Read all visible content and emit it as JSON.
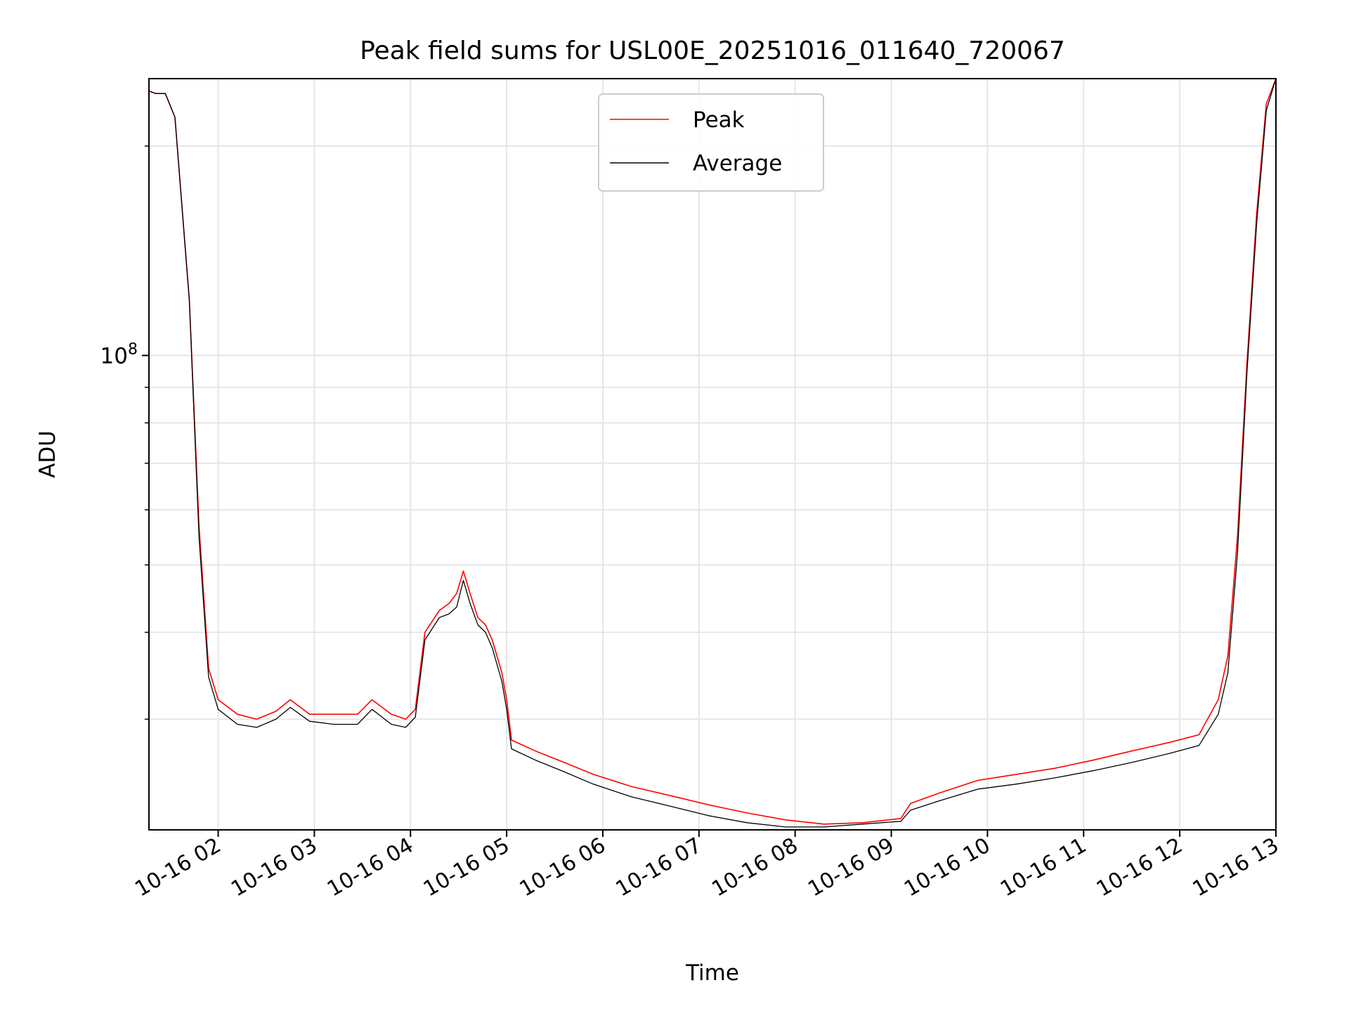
{
  "chart_data": {
    "type": "line",
    "title": "Peak field sums for USL00E_20251016_011640_720067",
    "xlabel": "Time",
    "ylabel": "ADU",
    "yscale": "log",
    "ylim": [
      20800000.0,
      250000000.0
    ],
    "y_major_tick_label": "10",
    "y_major_tick_exp": "8",
    "y_major_tick_value": 100000000.0,
    "y_minor_ticks": [
      30000000.0,
      40000000.0,
      50000000.0,
      60000000.0,
      70000000.0,
      80000000.0,
      90000000.0,
      200000000.0
    ],
    "xlim_hours": [
      1.28,
      13.0
    ],
    "x_ticks": [
      {
        "label": "10-16 02",
        "hour": 2
      },
      {
        "label": "10-16 03",
        "hour": 3
      },
      {
        "label": "10-16 04",
        "hour": 4
      },
      {
        "label": "10-16 05",
        "hour": 5
      },
      {
        "label": "10-16 06",
        "hour": 6
      },
      {
        "label": "10-16 07",
        "hour": 7
      },
      {
        "label": "10-16 08",
        "hour": 8
      },
      {
        "label": "10-16 09",
        "hour": 9
      },
      {
        "label": "10-16 10",
        "hour": 10
      },
      {
        "label": "10-16 11",
        "hour": 11
      },
      {
        "label": "10-16 12",
        "hour": 12
      },
      {
        "label": "10-16 13",
        "hour": 13
      }
    ],
    "grid": true,
    "legend": {
      "location": "top-center",
      "entries": [
        "Peak",
        "Average"
      ]
    },
    "series": [
      {
        "name": "Peak",
        "color": "#ff0000",
        "x_hours": [
          1.28,
          1.35,
          1.45,
          1.55,
          1.7,
          1.8,
          1.9,
          2.0,
          2.2,
          2.4,
          2.6,
          2.75,
          2.95,
          3.2,
          3.45,
          3.6,
          3.8,
          3.95,
          4.05,
          4.15,
          4.3,
          4.4,
          4.48,
          4.55,
          4.62,
          4.7,
          4.78,
          4.85,
          4.95,
          5.0,
          5.05,
          5.3,
          5.6,
          5.9,
          6.3,
          6.7,
          7.1,
          7.5,
          7.9,
          8.3,
          8.7,
          9.1,
          9.2,
          9.5,
          9.9,
          10.3,
          10.7,
          11.1,
          11.5,
          11.9,
          12.2,
          12.4,
          12.5,
          12.6,
          12.7,
          12.8,
          12.9,
          13.0
        ],
        "y_values": [
          240000000.0,
          238000000.0,
          238000000.0,
          220000000.0,
          120000000.0,
          57000000.0,
          35500000.0,
          32000000.0,
          30500000.0,
          30000000.0,
          30800000.0,
          32000000.0,
          30500000.0,
          30500000.0,
          30500000.0,
          32000000.0,
          30500000.0,
          30000000.0,
          31000000.0,
          40000000.0,
          43000000.0,
          44000000.0,
          45500000.0,
          49000000.0,
          45500000.0,
          42000000.0,
          41000000.0,
          39000000.0,
          35000000.0,
          32000000.0,
          28000000.0,
          27000000.0,
          26000000.0,
          25000000.0,
          24000000.0,
          23300000.0,
          22600000.0,
          22000000.0,
          21500000.0,
          21200000.0,
          21300000.0,
          21600000.0,
          22700000.0,
          23500000.0,
          24500000.0,
          25000000.0,
          25500000.0,
          26200000.0,
          27000000.0,
          27800000.0,
          28500000.0,
          32000000.0,
          37000000.0,
          55000000.0,
          98000000.0,
          160000000.0,
          230000000.0,
          250000000.0
        ]
      },
      {
        "name": "Average",
        "color": "#000000",
        "x_hours": [
          1.28,
          1.35,
          1.45,
          1.55,
          1.7,
          1.8,
          1.9,
          2.0,
          2.2,
          2.4,
          2.6,
          2.75,
          2.95,
          3.2,
          3.45,
          3.6,
          3.8,
          3.95,
          4.05,
          4.15,
          4.3,
          4.4,
          4.48,
          4.55,
          4.62,
          4.7,
          4.78,
          4.85,
          4.95,
          5.0,
          5.05,
          5.3,
          5.6,
          5.9,
          6.3,
          6.7,
          7.1,
          7.5,
          7.9,
          8.3,
          8.7,
          9.1,
          9.2,
          9.5,
          9.9,
          10.3,
          10.7,
          11.1,
          11.5,
          11.9,
          12.2,
          12.4,
          12.5,
          12.6,
          12.7,
          12.8,
          12.9,
          13.0
        ],
        "y_values": [
          240000000.0,
          238000000.0,
          238000000.0,
          220000000.0,
          120000000.0,
          55000000.0,
          34500000.0,
          31000000.0,
          29500000.0,
          29200000.0,
          30000000.0,
          31200000.0,
          29800000.0,
          29500000.0,
          29500000.0,
          31000000.0,
          29500000.0,
          29200000.0,
          30200000.0,
          39000000.0,
          42000000.0,
          42500000.0,
          43500000.0,
          47500000.0,
          44000000.0,
          41000000.0,
          40000000.0,
          38000000.0,
          34000000.0,
          31000000.0,
          27200000.0,
          26200000.0,
          25200000.0,
          24200000.0,
          23200000.0,
          22500000.0,
          21800000.0,
          21300000.0,
          21000000.0,
          21000000.0,
          21200000.0,
          21400000.0,
          22200000.0,
          22900000.0,
          23800000.0,
          24200000.0,
          24700000.0,
          25300000.0,
          26000000.0,
          26800000.0,
          27500000.0,
          30500000.0,
          35000000.0,
          52000000.0,
          95000000.0,
          155000000.0,
          225000000.0,
          250000000.0
        ]
      }
    ]
  }
}
